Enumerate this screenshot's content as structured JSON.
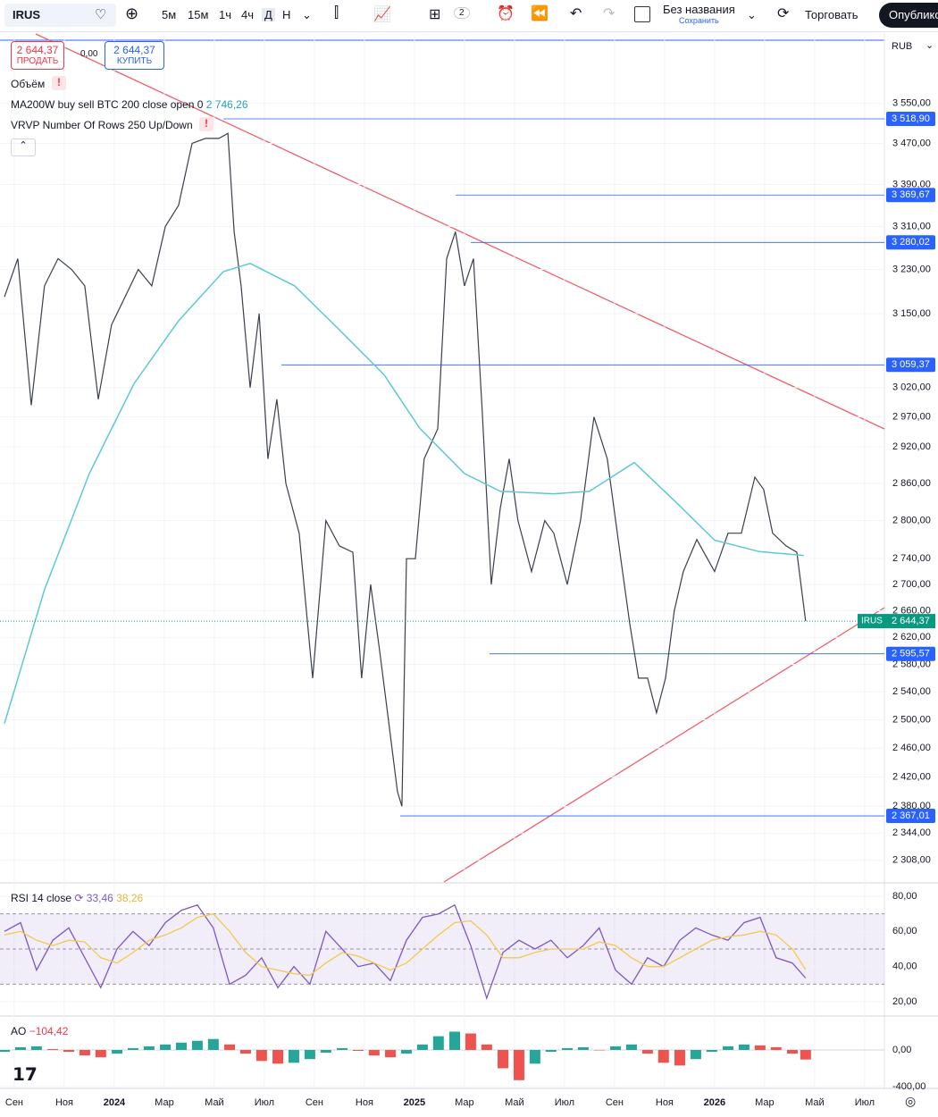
{
  "toolbar": {
    "symbol": "IRUS",
    "intervals": [
      "5м",
      "15м",
      "1ч",
      "4ч",
      "Д",
      "Н"
    ],
    "layout_count": "2",
    "layout_name": "Без названия",
    "save": "Сохранить",
    "trade": "Торговать",
    "publish": "Опублико"
  },
  "order_panel": {
    "sell_price": "2 644,37",
    "sell": "ПРОДАТЬ",
    "spread": "0,00",
    "buy_price": "2 644,37",
    "buy": "КУПИТЬ"
  },
  "legend": {
    "volume": "Объём",
    "ma_value": "2 746,26",
    "vrvp": "VRVP Number Of Rows 250 Up/Down"
  },
  "currency": "RUB",
  "chart_data": [
    {
      "type": "line",
      "log_scale": true,
      "xlim": [
        -0.57,
        34.79
      ],
      "xticks": [
        {
          "value": 0,
          "label": "Сен"
        },
        {
          "value": 2,
          "label": "Ноя"
        },
        {
          "value": 4,
          "label": "2024"
        },
        {
          "value": 6,
          "label": "Мар"
        },
        {
          "value": 8,
          "label": "Май"
        },
        {
          "value": 10,
          "label": "Июл"
        },
        {
          "value": 12,
          "label": "Сен"
        },
        {
          "value": 14,
          "label": "Ноя"
        },
        {
          "value": 16,
          "label": "2025"
        },
        {
          "value": 18,
          "label": "Мар"
        },
        {
          "value": 20,
          "label": "Май"
        },
        {
          "value": 22,
          "label": "Июл"
        },
        {
          "value": 24,
          "label": "Сен"
        },
        {
          "value": 26,
          "label": "Ноя"
        },
        {
          "value": 28,
          "label": "2026"
        },
        {
          "value": 30,
          "label": "Мар"
        },
        {
          "value": 32,
          "label": "Май"
        },
        {
          "value": 34,
          "label": "Июл"
        }
      ],
      "ylim": [
        2282,
        3693
      ],
      "yticks": [
        {
          "value": 3550,
          "label": "3 550,00"
        },
        {
          "value": 3470,
          "label": "3 470,00"
        },
        {
          "value": 3390,
          "label": "3 390,00"
        },
        {
          "value": 3310,
          "label": "3 310,00"
        },
        {
          "value": 3230,
          "label": "3 230,00"
        },
        {
          "value": 3150,
          "label": "3 150,00"
        },
        {
          "value": 3020,
          "label": "3 020,00"
        },
        {
          "value": 2970,
          "label": "2 970,00"
        },
        {
          "value": 2920,
          "label": "2 920,00"
        },
        {
          "value": 2860,
          "label": "2 860,00"
        },
        {
          "value": 2800,
          "label": "2 800,00"
        },
        {
          "value": 2740,
          "label": "2 740,00"
        },
        {
          "value": 2700,
          "label": "2 700,00"
        },
        {
          "value": 2660,
          "label": "2 660,00"
        },
        {
          "value": 2620,
          "label": "2 620,00"
        },
        {
          "value": 2580,
          "label": "2 580,00"
        },
        {
          "value": 2540,
          "label": "2 540,00"
        },
        {
          "value": 2500,
          "label": "2 500,00"
        },
        {
          "value": 2460,
          "label": "2 460,00"
        },
        {
          "value": 2420,
          "label": "2 420,00"
        },
        {
          "value": 2380,
          "label": "2 380,00"
        },
        {
          "value": 2344,
          "label": "2 344,00"
        },
        {
          "value": 2308,
          "label": "2 308,00"
        }
      ],
      "series": [
        {
          "name": "IRUS",
          "color": "#3a3f4a",
          "x": [
            -0.39,
            0.14,
            0.68,
            1.21,
            1.75,
            2.29,
            2.82,
            3.36,
            3.89,
            4.43,
            4.96,
            5.5,
            6.04,
            6.57,
            7.11,
            7.64,
            8.18,
            8.54,
            8.79,
            9.07,
            9.43,
            9.79,
            10.14,
            10.5,
            10.86,
            11.39,
            11.93,
            12.46,
            13,
            13.54,
            13.89,
            14.25,
            14.61,
            14.96,
            15.32,
            15.5,
            15.68,
            16.04,
            16.39,
            16.93,
            17.29,
            17.64,
            18,
            18.36,
            18.71,
            19.07,
            19.43,
            19.79,
            20.14,
            20.68,
            21.21,
            21.57,
            22.11,
            22.64,
            23.18,
            23.71,
            24.25,
            24.61,
            24.96,
            25.32,
            25.68,
            26.04,
            26.39,
            26.75,
            27.29,
            28,
            28.54,
            29.07,
            29.61,
            29.96,
            30.32,
            30.86,
            31.29,
            31.64
          ],
          "values": [
            3180,
            3250,
            2990,
            3200,
            3250,
            3230,
            3200,
            3000,
            3130,
            3180,
            3230,
            3200,
            3310,
            3350,
            3470,
            3480,
            3480,
            3490,
            3300,
            3200,
            3020,
            3150,
            2900,
            3000,
            2860,
            2780,
            2560,
            2800,
            2760,
            2750,
            2560,
            2700,
            2600,
            2500,
            2400,
            2380,
            2740,
            2740,
            2900,
            2950,
            3250,
            3300,
            3200,
            3250,
            2980,
            2700,
            2820,
            2900,
            2800,
            2720,
            2800,
            2780,
            2700,
            2800,
            2970,
            2900,
            2740,
            2640,
            2560,
            2560,
            2510,
            2560,
            2660,
            2720,
            2770,
            2720,
            2780,
            2780,
            2870,
            2850,
            2780,
            2760,
            2750,
            2644.37
          ]
        },
        {
          "name": "MA200W buy sell BTC 200 close open 0",
          "color": "#5cc8d6",
          "x": [
            -0.39,
            1.21,
            3,
            4.79,
            6.57,
            8.36,
            9.43,
            11.21,
            13,
            14.79,
            16.21,
            18,
            19.43,
            21.57,
            23,
            24.79,
            26.57,
            28,
            29.79,
            31.57
          ],
          "values": [
            2495,
            2692,
            2876,
            3027,
            3137,
            3226,
            3241,
            3200,
            3121,
            3042,
            2951,
            2876,
            2847,
            2843,
            2847,
            2894,
            2825,
            2769,
            2751,
            2745
          ]
        }
      ],
      "levels": [
        {
          "value": 3518.9,
          "label": "3 518,90"
        },
        {
          "value": 3369.67,
          "label": "3 369,67"
        },
        {
          "value": 3280.02,
          "label": "3 280,02"
        },
        {
          "value": 3059.37,
          "label": "3 059,37"
        },
        {
          "value": 2595.57,
          "label": "2 595,57"
        },
        {
          "value": 2367.01,
          "label": "2 367,01"
        }
      ],
      "last_price": {
        "value": 2644.37,
        "label": "2 644,37"
      }
    },
    {
      "type": "line",
      "title": "RSI 14 close",
      "ylim": [
        12.9,
        86.6
      ],
      "yticks": [
        {
          "value": 80,
          "label": "80,00"
        },
        {
          "value": 60,
          "label": "60,00"
        },
        {
          "value": 40,
          "label": "40,00"
        },
        {
          "value": 20,
          "label": "20,00"
        }
      ],
      "levels": [
        70,
        50,
        30
      ],
      "x": [
        -0.39,
        0.25,
        0.89,
        1.54,
        2.18,
        2.82,
        3.46,
        4.11,
        4.75,
        5.39,
        6.04,
        6.68,
        7.32,
        7.96,
        8.61,
        9.25,
        9.89,
        10.54,
        11.18,
        11.82,
        12.46,
        13.11,
        13.75,
        14.39,
        15.04,
        15.68,
        16.32,
        16.96,
        17.61,
        18.25,
        18.89,
        19.54,
        20.18,
        20.82,
        21.46,
        22.11,
        22.75,
        23.39,
        24.04,
        24.68,
        25.32,
        25.96,
        26.61,
        27.25,
        27.89,
        28.54,
        29.18,
        29.82,
        30.46,
        31.11,
        31.64
      ],
      "series": [
        {
          "color": "#7e57c2",
          "current_label": "33,46",
          "values": [
            60,
            65,
            38,
            55,
            62,
            45,
            28,
            50,
            60,
            52,
            65,
            72,
            75,
            62,
            30,
            35,
            45,
            28,
            40,
            30,
            60,
            50,
            40,
            42,
            32,
            55,
            68,
            70,
            75,
            52,
            22,
            48,
            55,
            50,
            55,
            45,
            52,
            62,
            38,
            30,
            45,
            40,
            55,
            62,
            58,
            55,
            65,
            68,
            45,
            42,
            33.46
          ]
        },
        {
          "color": "#f2c94c",
          "current_label": "38,26",
          "values": [
            58,
            60,
            55,
            52,
            55,
            54,
            45,
            42,
            48,
            55,
            58,
            62,
            68,
            70,
            60,
            48,
            40,
            38,
            36,
            35,
            42,
            48,
            46,
            42,
            38,
            42,
            50,
            58,
            65,
            66,
            58,
            45,
            45,
            48,
            50,
            50,
            50,
            54,
            52,
            45,
            40,
            40,
            45,
            50,
            55,
            57,
            58,
            60,
            58,
            50,
            38.26
          ]
        }
      ]
    },
    {
      "type": "bar",
      "title": "AO",
      "ylim": [
        -420,
        361
      ],
      "yticks": [
        {
          "value": 0,
          "label": "0,00"
        },
        {
          "value": -400,
          "label": "-400,00"
        }
      ],
      "colors": {
        "up": "#26a69a",
        "down": "#ef5350"
      },
      "current_label": "−104,42",
      "x": [
        -0.39,
        0.25,
        0.89,
        1.54,
        2.18,
        2.82,
        3.46,
        4.11,
        4.75,
        5.39,
        6.04,
        6.68,
        7.32,
        7.96,
        8.61,
        9.25,
        9.89,
        10.54,
        11.18,
        11.82,
        12.46,
        13.11,
        13.75,
        14.39,
        15.04,
        15.68,
        16.32,
        16.96,
        17.61,
        18.25,
        18.89,
        19.54,
        20.18,
        20.82,
        21.46,
        22.11,
        22.75,
        23.39,
        24.04,
        24.68,
        25.32,
        25.96,
        26.61,
        27.25,
        27.89,
        28.54,
        29.18,
        29.82,
        30.46,
        31.11,
        31.64
      ],
      "values": [
        -20,
        30,
        40,
        10,
        -20,
        -60,
        -80,
        -40,
        20,
        40,
        60,
        80,
        100,
        120,
        60,
        -40,
        -120,
        -150,
        -140,
        -100,
        -30,
        20,
        -10,
        -60,
        -80,
        -40,
        60,
        150,
        200,
        180,
        60,
        -200,
        -330,
        -150,
        -20,
        20,
        30,
        0,
        40,
        60,
        -40,
        -140,
        -170,
        -100,
        -20,
        40,
        60,
        50,
        30,
        -40,
        -104.42
      ]
    }
  ]
}
